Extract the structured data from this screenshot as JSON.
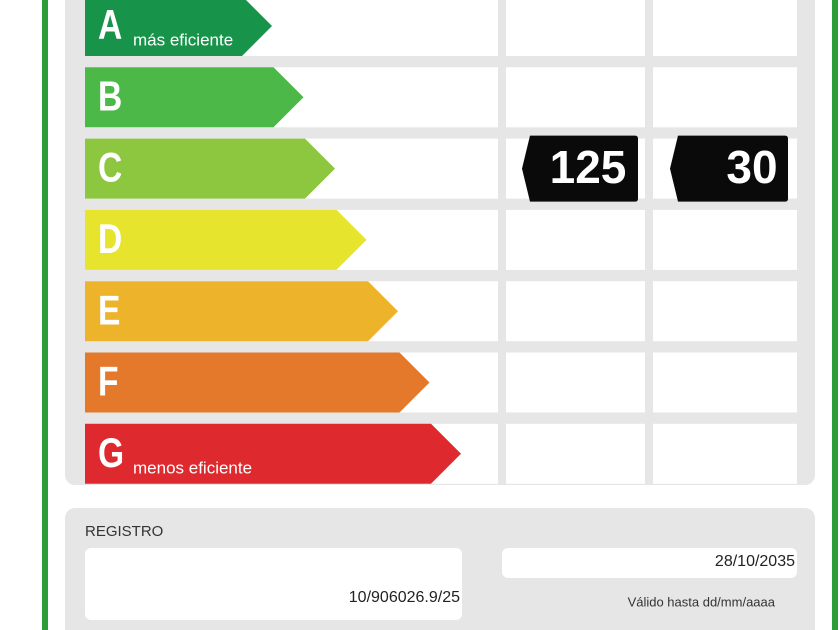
{
  "label": {
    "classes": [
      {
        "letter": "A",
        "note": "más eficiente",
        "color": "#17944a"
      },
      {
        "letter": "B",
        "color": "#4cb848"
      },
      {
        "letter": "C",
        "color": "#8dc63f",
        "values": [
          125,
          30
        ]
      },
      {
        "letter": "D",
        "color": "#e6e42c"
      },
      {
        "letter": "E",
        "color": "#edb32a"
      },
      {
        "letter": "F",
        "color": "#e4782b"
      },
      {
        "letter": "G",
        "note": "menos eficiente",
        "color": "#de2a2e"
      }
    ],
    "registro": {
      "title": "REGISTRO",
      "number": "10/906026.9/25",
      "date": "28/10/2035",
      "valid_note": "Válido hasta dd/mm/aaaa"
    }
  }
}
